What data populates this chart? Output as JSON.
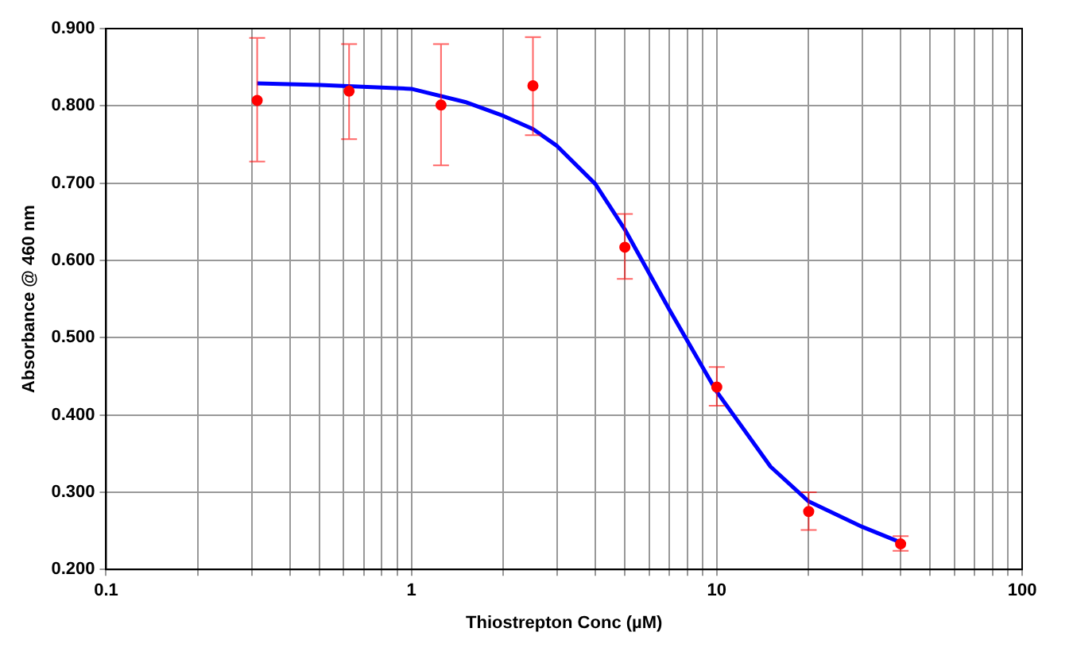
{
  "chart_data": {
    "type": "scatter",
    "xlabel": "Thiostrepton Conc (µM)",
    "ylabel": "Absorbance @ 460 nm",
    "log": "x",
    "grid": true,
    "legend": false,
    "xlim": [
      0.1,
      100
    ],
    "ylim": [
      0.2,
      0.9
    ],
    "xticks": [
      0.1,
      {
        "value": 0.2,
        "label": null
      },
      {
        "value": 0.3,
        "label": null
      },
      {
        "value": 0.4,
        "label": null
      },
      {
        "value": 0.5,
        "label": null
      },
      {
        "value": 0.6,
        "label": null
      },
      {
        "value": 0.7,
        "label": null
      },
      {
        "value": 0.8,
        "label": null
      },
      {
        "value": 0.9,
        "label": null
      },
      1,
      {
        "value": 2,
        "label": null
      },
      {
        "value": 3,
        "label": null
      },
      {
        "value": 4,
        "label": null
      },
      {
        "value": 5,
        "label": null
      },
      {
        "value": 6,
        "label": null
      },
      {
        "value": 7,
        "label": null
      },
      {
        "value": 8,
        "label": null
      },
      {
        "value": 9,
        "label": null
      },
      10,
      {
        "value": 20,
        "label": null
      },
      {
        "value": 30,
        "label": null
      },
      {
        "value": 40,
        "label": null
      },
      {
        "value": 50,
        "label": null
      },
      {
        "value": 60,
        "label": null
      },
      {
        "value": 70,
        "label": null
      },
      {
        "value": 80,
        "label": null
      },
      {
        "value": 90,
        "label": null
      },
      100
    ],
    "yticks": [
      {
        "value": 0.2,
        "label": "0.200"
      },
      {
        "value": 0.3,
        "label": "0.300"
      },
      {
        "value": 0.4,
        "label": "0.400"
      },
      {
        "value": 0.5,
        "label": "0.500"
      },
      {
        "value": 0.6,
        "label": "0.600"
      },
      {
        "value": 0.7,
        "label": "0.700"
      },
      {
        "value": 0.8,
        "label": "0.800"
      },
      {
        "value": 0.9,
        "label": "0.900"
      }
    ],
    "series": [
      {
        "color": "#ff0000",
        "marker": "circle",
        "x": [
          0.3125,
          0.625,
          1.25,
          2.5,
          5,
          10,
          20,
          40
        ],
        "values": [
          0.807,
          0.819,
          0.801,
          0.826,
          0.617,
          0.436,
          0.275,
          0.233
        ],
        "errors": [
          [
            0.728,
            0.888
          ],
          [
            0.757,
            0.88
          ],
          [
            0.723,
            0.88
          ],
          [
            0.762,
            0.889
          ],
          [
            0.576,
            0.66
          ],
          [
            0.412,
            0.462
          ],
          [
            0.251,
            0.3
          ],
          [
            0.224,
            0.243
          ]
        ]
      },
      {
        "type": "line",
        "color": "#0000ff",
        "marker": "none",
        "line_style": "solid",
        "x": [
          0.3125,
          0.5,
          1,
          1.5,
          2,
          2.5,
          3,
          4,
          5,
          7,
          10,
          15,
          20,
          30,
          40
        ],
        "values": [
          0.829,
          0.827,
          0.822,
          0.805,
          0.787,
          0.77,
          0.748,
          0.699,
          0.64,
          0.536,
          0.43,
          0.333,
          0.288,
          0.255,
          0.235
        ]
      }
    ]
  }
}
